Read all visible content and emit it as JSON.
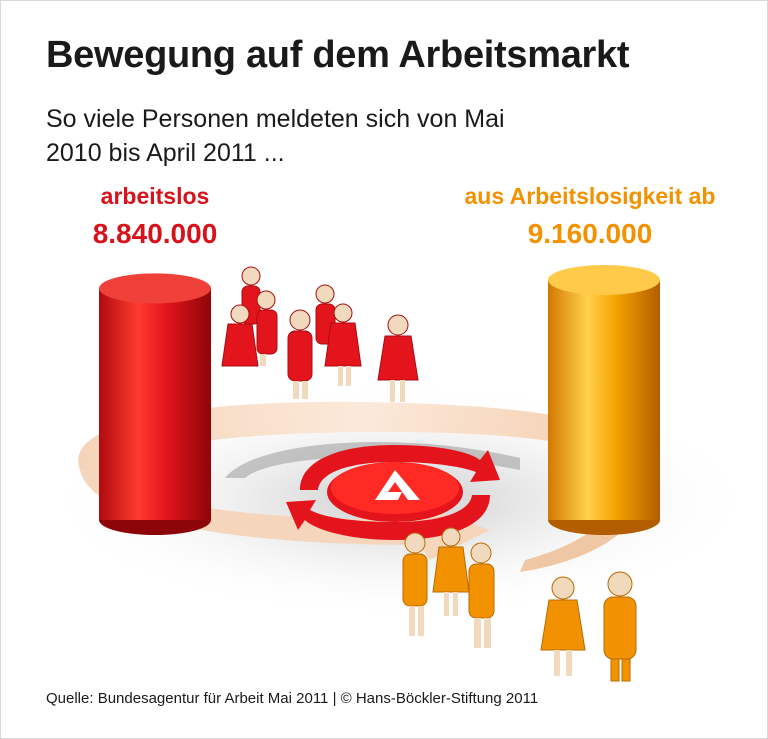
{
  "title": "Bewegung auf dem Arbeitsmarkt",
  "subtitle": "So viele Personen meldeten sich von Mai 2010 bis April 2011 ...",
  "source": "Quelle: Bundesagentur für Arbeit Mai 2011 | © Hans-Böckler-Stiftung 2011",
  "colors": {
    "unemployed": "#e3141c",
    "exit": "#f6a400",
    "text": "#1a1a1a"
  },
  "icons": [
    "agency-logo-icon",
    "people-figures-icon",
    "cycle-arrow-icon"
  ],
  "chart_data": {
    "type": "bar",
    "categories": [
      "arbeitslos",
      "aus Arbeitslosigkeit ab"
    ],
    "values": [
      8840000,
      9160000
    ],
    "value_labels": [
      "8.840.000",
      "9.160.000"
    ],
    "title": "Bewegung auf dem Arbeitsmarkt",
    "colors": [
      "#e3141c",
      "#f6a400"
    ]
  }
}
